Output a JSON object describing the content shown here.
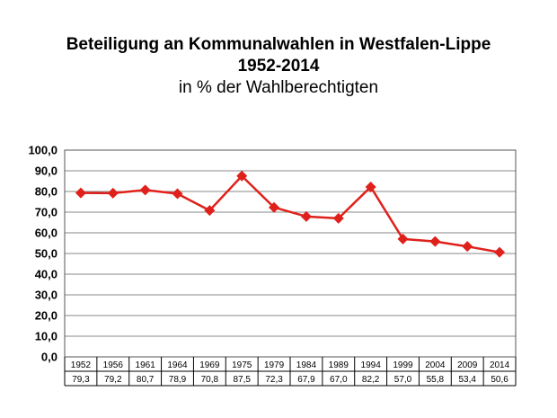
{
  "chart_data": {
    "type": "line",
    "title": "Beteiligung an Kommunalwahlen in Westfalen-Lippe",
    "title_line2": "1952-2014",
    "subtitle": "in % der Wahlberechtigten",
    "categories": [
      "1952",
      "1956",
      "1961",
      "1964",
      "1969",
      "1975",
      "1979",
      "1984",
      "1989",
      "1994",
      "1999",
      "2004",
      "2009",
      "2014"
    ],
    "series": [
      {
        "values": [
          79.3,
          79.2,
          80.7,
          78.9,
          70.8,
          87.5,
          72.3,
          67.9,
          67.0,
          82.2,
          57.0,
          55.8,
          53.4,
          50.6
        ],
        "labels": [
          "79,3",
          "79,2",
          "80,7",
          "78,9",
          "70,8",
          "87,5",
          "72,3",
          "67,9",
          "67,0",
          "82,2",
          "57,0",
          "55,8",
          "53,4",
          "50,6"
        ]
      }
    ],
    "ylim": [
      0,
      100
    ],
    "yticks": [
      "0,0",
      "10,0",
      "20,0",
      "30,0",
      "40,0",
      "50,0",
      "60,0",
      "70,0",
      "80,0",
      "90,0",
      "100,0"
    ],
    "grid": true,
    "data_table": true,
    "line_color": "#e0201b",
    "grid_color": "#888888"
  }
}
